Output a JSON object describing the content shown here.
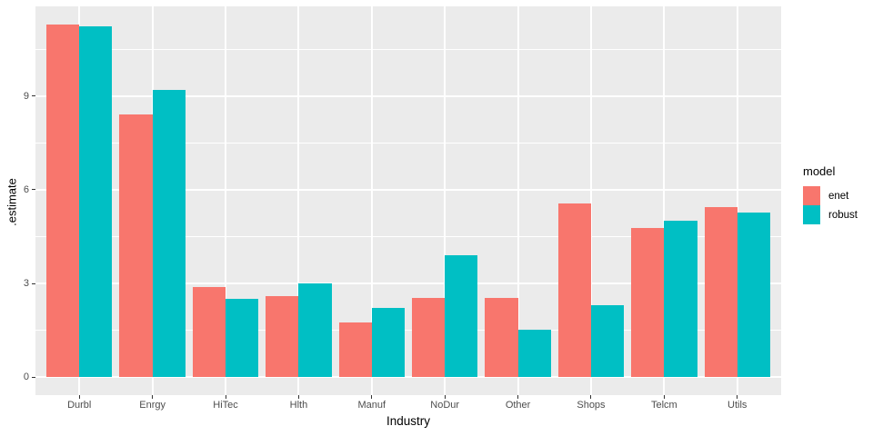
{
  "chart_data": {
    "type": "bar",
    "title": "",
    "xlabel": "Industry",
    "ylabel": ".estimate",
    "categories": [
      "Durbl",
      "Enrgy",
      "HiTec",
      "Hlth",
      "Manuf",
      "NoDur",
      "Other",
      "Shops",
      "Telcm",
      "Utils"
    ],
    "series": [
      {
        "name": "enet",
        "color": "#F8766D",
        "values": [
          11.3,
          8.42,
          2.88,
          2.59,
          1.75,
          2.53,
          2.55,
          5.55,
          4.77,
          5.45
        ]
      },
      {
        "name": "robust",
        "color": "#00BFC4",
        "values": [
          11.24,
          9.2,
          2.52,
          3.01,
          2.21,
          3.9,
          1.51,
          2.32,
          5.0,
          5.26
        ]
      }
    ],
    "yticks": [
      0,
      3,
      6,
      9
    ],
    "ylim": [
      -0.57,
      11.87
    ],
    "legend_title": "model",
    "legend_position": "right",
    "grid": "major-and-minor-horizontal, major-vertical",
    "colors": {
      "panel_background": "#EBEBEB",
      "grid": "#FFFFFF",
      "tick_text": "#4D4D4D",
      "tick_mark": "#333333",
      "axis_title_text": "#000000"
    }
  }
}
